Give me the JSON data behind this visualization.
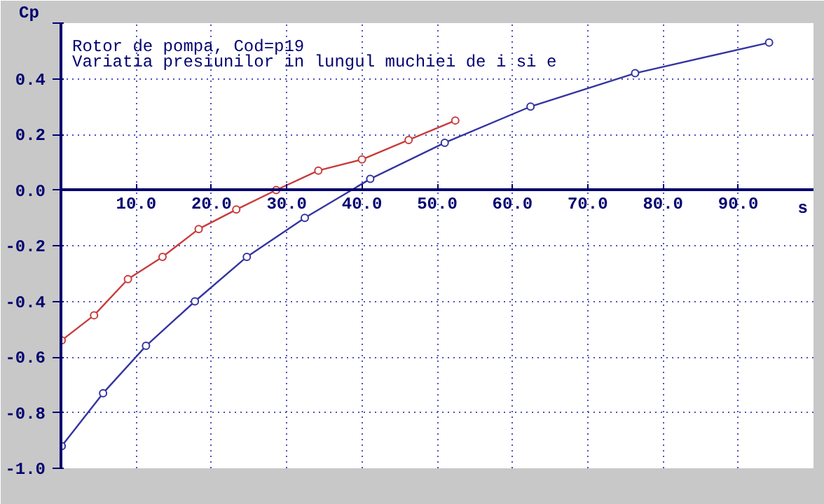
{
  "chart_data": {
    "type": "line",
    "title": "Rotor de pompa, Cod=p19",
    "subtitle": "Variatia presiunilor in lungul muchiei de i si e",
    "xlabel": "s",
    "ylabel": "Cp",
    "xlim": [
      0,
      100
    ],
    "ylim": [
      -1.0,
      0.6
    ],
    "xticks": [
      {
        "value": 10,
        "label": "10.0"
      },
      {
        "value": 20,
        "label": "20.0"
      },
      {
        "value": 30,
        "label": "30.0"
      },
      {
        "value": 40,
        "label": "40.0"
      },
      {
        "value": 50,
        "label": "50.0"
      },
      {
        "value": 60,
        "label": "60.0"
      },
      {
        "value": 70,
        "label": "70.0"
      },
      {
        "value": 80,
        "label": "80.0"
      },
      {
        "value": 90,
        "label": "90.0"
      }
    ],
    "yticks": [
      {
        "value": -1.0,
        "label": "-1.0"
      },
      {
        "value": -0.8,
        "label": "-0.8"
      },
      {
        "value": -0.6,
        "label": "-0.6"
      },
      {
        "value": -0.4,
        "label": "-0.4"
      },
      {
        "value": -0.2,
        "label": "-0.2"
      },
      {
        "value": 0,
        "label": "0.0"
      },
      {
        "value": 0.2,
        "label": "0.2"
      },
      {
        "value": 0.4,
        "label": "0.4"
      },
      {
        "value": 0.6,
        "label": null
      }
    ],
    "grid": true,
    "marker": "circle",
    "line_style": "solid",
    "series": [
      {
        "color": "#c83c3c",
        "x": [
          0.1,
          4.4,
          8.9,
          13.5,
          18.3,
          23.3,
          28.6,
          34.2,
          40.0,
          46.2,
          52.4
        ],
        "values": [
          -0.54,
          -0.45,
          -0.32,
          -0.24,
          -0.14,
          -0.07,
          0.0,
          0.07,
          0.11,
          0.18,
          0.25
        ]
      },
      {
        "color": "#3434a0",
        "x": [
          0.1,
          5.6,
          11.3,
          17.8,
          24.7,
          32.4,
          41.1,
          51.0,
          62.4,
          76.3,
          94.1
        ],
        "values": [
          -0.92,
          -0.73,
          -0.56,
          -0.4,
          -0.24,
          -0.1,
          0.04,
          0.17,
          0.3,
          0.42,
          0.53
        ]
      }
    ]
  }
}
